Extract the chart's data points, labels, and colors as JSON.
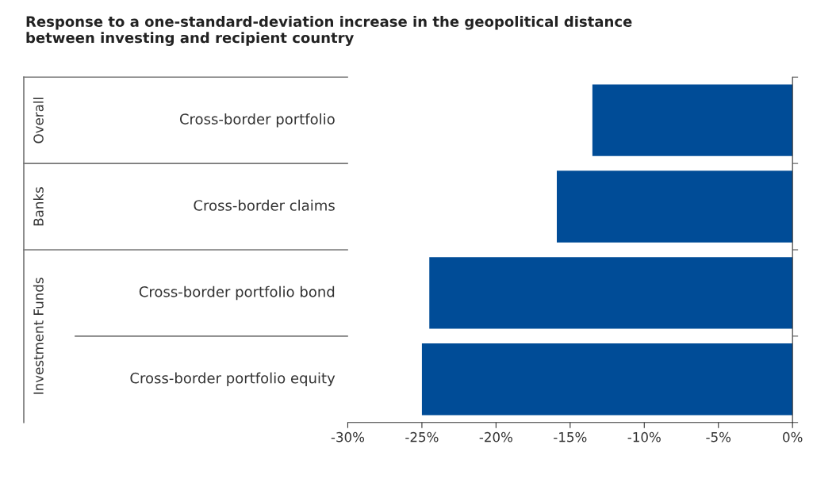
{
  "chart_data": {
    "type": "bar",
    "orientation": "horizontal",
    "title": "Response to a one-standard-deviation increase in the geopolitical distance\nbetween investing and recipient country",
    "categories": [
      "Cross-border portfolio",
      "Cross-border claims",
      "Cross-border portfolio bond",
      "Cross-border portfolio equity"
    ],
    "values": [
      -13.5,
      -15.9,
      -24.5,
      -25.0
    ],
    "color": "#004c97",
    "xlim": [
      -30,
      0
    ],
    "xticks": [
      {
        "value": -30,
        "label": "-30%"
      },
      {
        "value": -25,
        "label": "-25%"
      },
      {
        "value": -20,
        "label": "-20%"
      },
      {
        "value": -15,
        "label": "-15%"
      },
      {
        "value": -10,
        "label": "-10%"
      },
      {
        "value": -5,
        "label": "-5%"
      },
      {
        "value": 0,
        "label": "0%"
      }
    ],
    "annotations": [
      "Overall",
      "Banks",
      "Investment Funds"
    ],
    "grid": false,
    "legend": false
  }
}
